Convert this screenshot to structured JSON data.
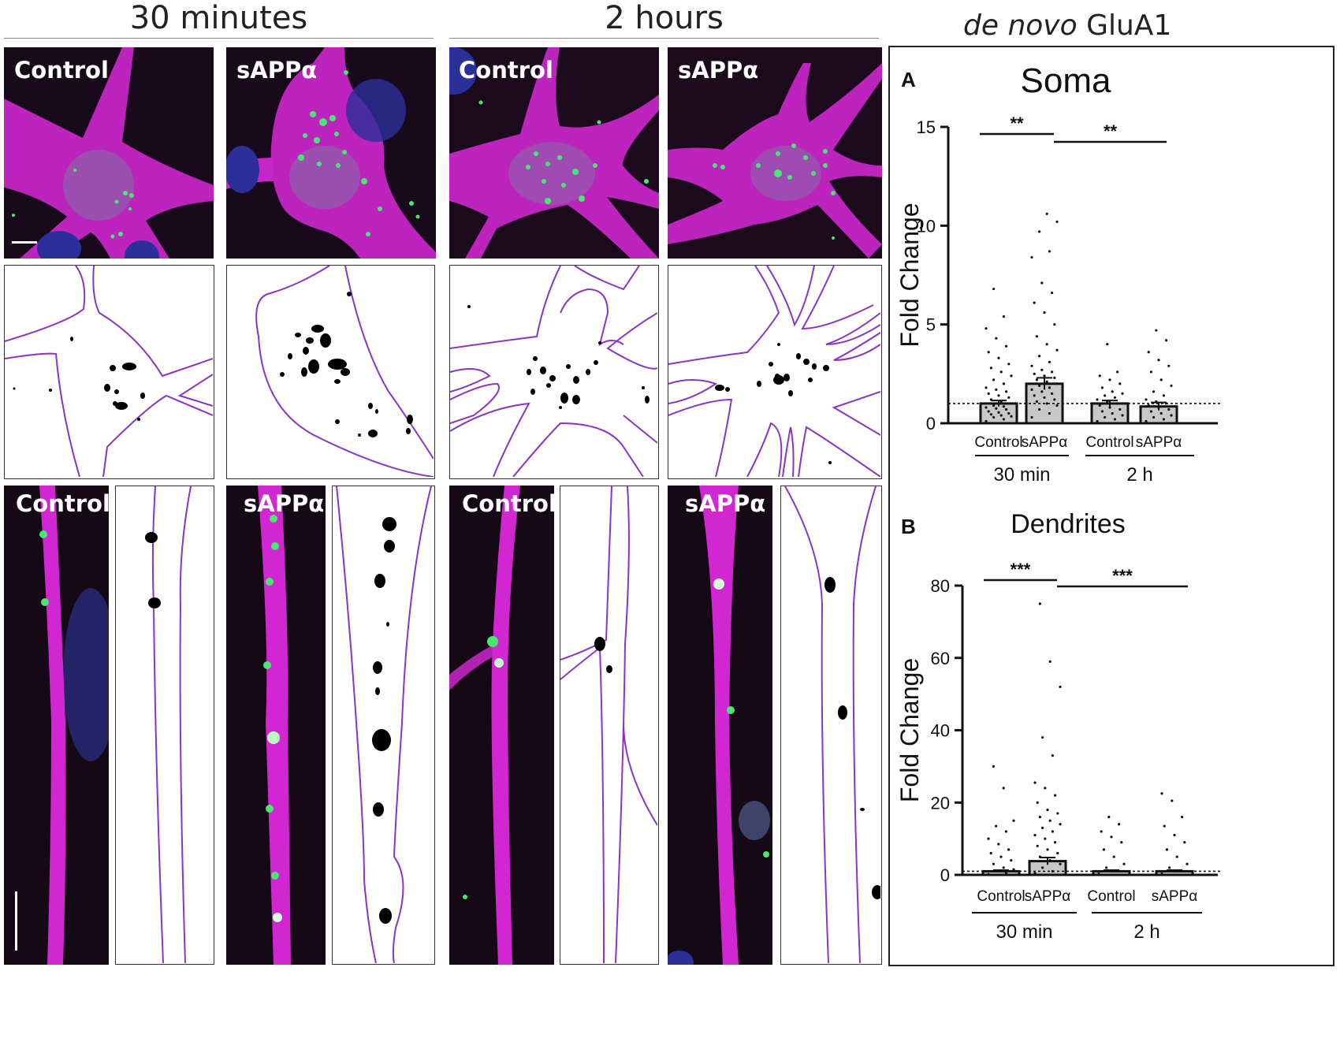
{
  "header": {
    "time_30": "30 minutes",
    "time_2h": "2 hours",
    "graph_title_em": "de novo",
    "graph_title_rest": " GluA1"
  },
  "panels": {
    "control": "Control",
    "sapp": "sAPPα"
  },
  "colors": {
    "magenta": "#d62ed6",
    "green": "#3fe56b",
    "blue": "#2c2c9e",
    "outline": "#8a33c7",
    "bar": "#c8c8c8"
  },
  "chart_data": [
    {
      "panel_letter": "A",
      "type": "bar",
      "title": "Soma",
      "ylabel": "Fold Change",
      "ylim": [
        0,
        15
      ],
      "yticks": [
        0,
        5,
        10,
        15
      ],
      "categories": [
        "Control",
        "sAPPα",
        "Control",
        "sAPPα"
      ],
      "groups": [
        "30 min",
        "2 h"
      ],
      "values": [
        1.0,
        2.0,
        1.0,
        0.85
      ],
      "errors": [
        0.15,
        0.3,
        0.15,
        0.2
      ],
      "reference_line": 1.0,
      "significance": [
        "**",
        "**"
      ],
      "points": [
        [
          0.1,
          0.2,
          0.3,
          0.35,
          0.4,
          0.45,
          0.5,
          0.55,
          0.6,
          0.7,
          0.75,
          0.8,
          0.85,
          0.9,
          1.0,
          1.1,
          1.2,
          1.3,
          1.4,
          1.5,
          1.6,
          1.7,
          1.8,
          2.0,
          2.2,
          2.4,
          2.6,
          2.8,
          3.0,
          3.3,
          3.6,
          3.9,
          4.3,
          4.8,
          5.4,
          6.8
        ],
        [
          0.3,
          0.5,
          0.7,
          0.9,
          1.0,
          1.1,
          1.2,
          1.3,
          1.4,
          1.5,
          1.6,
          1.7,
          1.8,
          1.9,
          2.0,
          2.1,
          2.2,
          2.3,
          2.4,
          2.5,
          2.6,
          2.7,
          2.9,
          3.1,
          3.4,
          3.7,
          4.0,
          4.4,
          5.0,
          5.6,
          6.1,
          6.6,
          7.1,
          8.4,
          8.7,
          9.7,
          10.2,
          10.6
        ],
        [
          0.1,
          0.2,
          0.3,
          0.4,
          0.5,
          0.6,
          0.7,
          0.8,
          0.9,
          1.0,
          1.1,
          1.2,
          1.3,
          1.4,
          1.5,
          1.6,
          1.8,
          2.0,
          2.2,
          2.4,
          2.6,
          4.0
        ],
        [
          0.1,
          0.2,
          0.3,
          0.4,
          0.5,
          0.6,
          0.7,
          0.8,
          0.9,
          1.0,
          1.1,
          1.2,
          1.4,
          1.6,
          1.9,
          2.2,
          2.6,
          2.9,
          3.2,
          3.6,
          4.2,
          4.7
        ]
      ]
    },
    {
      "panel_letter": "B",
      "type": "bar",
      "title": "Dendrites",
      "ylabel": "Fold Change",
      "ylim": [
        0,
        80
      ],
      "yticks": [
        0,
        20,
        40,
        60,
        80
      ],
      "categories": [
        "Control",
        "sAPPα",
        "Control",
        "sAPPα"
      ],
      "groups": [
        "30 min",
        "2 h"
      ],
      "values": [
        1.0,
        3.8,
        1.0,
        1.0
      ],
      "errors": [
        0.3,
        1.0,
        0.3,
        0.3
      ],
      "reference_line": 1.0,
      "significance": [
        "***",
        "***"
      ],
      "points": [
        [
          0.2,
          0.5,
          1.0,
          1.5,
          2.0,
          3.0,
          4.0,
          5.0,
          6.0,
          7.0,
          8.5,
          10.0,
          12.0,
          13.5,
          15.0,
          24.0,
          30.0
        ],
        [
          0.5,
          1.0,
          2.0,
          3.0,
          4.0,
          5.0,
          6.0,
          7.0,
          8.0,
          9.0,
          10.0,
          11.0,
          12.0,
          13.0,
          14.0,
          15.0,
          16.0,
          17.0,
          18.0,
          20.0,
          22.0,
          24.0,
          25.5,
          33.0,
          38.0,
          52.0,
          59.0,
          75.0
        ],
        [
          0.3,
          1.0,
          2.0,
          3.0,
          5.0,
          7.0,
          9.0,
          10.5,
          12.0,
          14.0,
          16.0
        ],
        [
          0.3,
          1.0,
          2.0,
          3.0,
          5.0,
          7.0,
          9.0,
          11.0,
          13.5,
          16.0,
          20.5,
          22.5
        ]
      ]
    }
  ]
}
